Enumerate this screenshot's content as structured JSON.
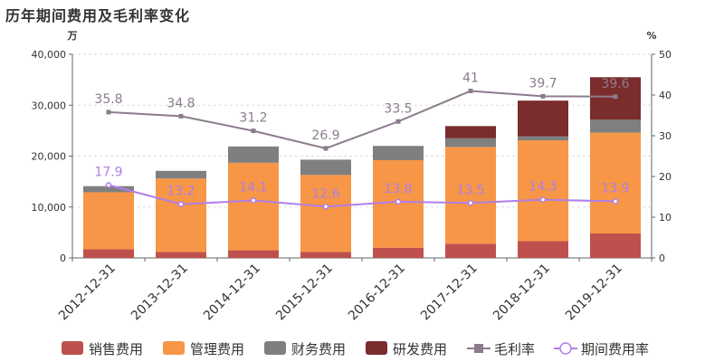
{
  "title": "历年期间费用及毛利率变化",
  "chart_data": {
    "type": "bar",
    "stacked": true,
    "title": "历年期间费用及毛利率变化",
    "y_left_unit": "万",
    "y_right_unit": "%",
    "y_left_ticks": [
      "0",
      "10,000",
      "20,000",
      "30,000",
      "40,000"
    ],
    "y_right_ticks": [
      "0",
      "10",
      "20",
      "30",
      "40",
      "50"
    ],
    "ylim_left": [
      0,
      40000
    ],
    "ylim_right": [
      0,
      50
    ],
    "grid": "horizontal dashed",
    "legend_position": "bottom",
    "categories": [
      "2012-12-31",
      "2013-12-31",
      "2014-12-31",
      "2015-12-31",
      "2016-12-31",
      "2017-12-31",
      "2018-12-31",
      "2019-12-31"
    ],
    "bar_series": [
      {
        "name": "销售费用",
        "color": "#c0504d",
        "values": [
          1700,
          1200,
          1500,
          1200,
          2000,
          2800,
          3300,
          4800
        ]
      },
      {
        "name": "管理费用",
        "color": "#f79646",
        "values": [
          11200,
          14400,
          17200,
          15100,
          17200,
          19000,
          19800,
          19800
        ]
      },
      {
        "name": "财务费用",
        "color": "#7f7f7f",
        "values": [
          1200,
          1500,
          3200,
          3000,
          2800,
          1700,
          800,
          2600
        ]
      },
      {
        "name": "研发费用",
        "color": "#7b2c2c",
        "values": [
          0,
          0,
          0,
          0,
          0,
          2400,
          7000,
          8300
        ]
      }
    ],
    "line_series": [
      {
        "name": "毛利率",
        "color": "#8c7b8c",
        "marker": "square",
        "values": [
          35.8,
          34.8,
          31.2,
          26.9,
          33.5,
          41,
          39.7,
          39.6
        ],
        "labels": [
          "35.8",
          "34.8",
          "31.2",
          "26.9",
          "33.5",
          "41",
          "39.7",
          "39.6"
        ]
      },
      {
        "name": "期间费用率",
        "color": "#b07ee8",
        "marker": "circle",
        "values": [
          17.9,
          13.2,
          14.1,
          12.6,
          13.8,
          13.5,
          14.3,
          13.9
        ],
        "labels": [
          "17.9",
          "13.2",
          "14.1",
          "12.6",
          "13.8",
          "13.5",
          "14.3",
          "13.9"
        ]
      }
    ]
  }
}
